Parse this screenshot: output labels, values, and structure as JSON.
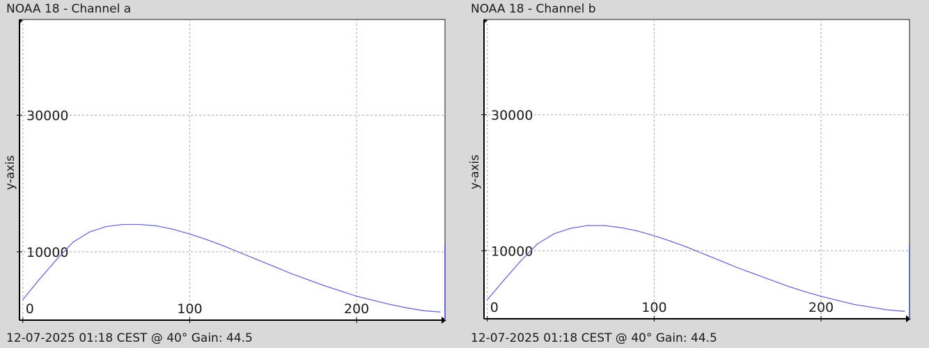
{
  "chart_data": [
    {
      "type": "line",
      "title": "NOAA 18 - Channel a",
      "footer": "12-07-2025 01:18 CEST @ 40° Gain: 44.5",
      "ylabel": "y-axis",
      "xlabel": "",
      "xlim": [
        -2,
        253
      ],
      "ylim": [
        0,
        44000
      ],
      "grid": true,
      "x_ticks": [
        0,
        100,
        200
      ],
      "x_tick_labels": [
        "0",
        "100",
        "200"
      ],
      "y_ticks": [
        10000,
        30000
      ],
      "y_tick_labels": [
        "10000",
        "30000"
      ],
      "line_color": "#6a6ac8",
      "series": [
        {
          "x": [
            0,
            10,
            20,
            30,
            40,
            50,
            60,
            70,
            80,
            90,
            100,
            110,
            120,
            130,
            140,
            150,
            160,
            170,
            180,
            190,
            200,
            210,
            220,
            230,
            240,
            250
          ],
          "values": [
            3000,
            6000,
            8800,
            11400,
            12900,
            13700,
            14000,
            14000,
            13800,
            13300,
            12600,
            11800,
            10900,
            9900,
            8900,
            7900,
            6900,
            6000,
            5100,
            4300,
            3500,
            2900,
            2300,
            1800,
            1400,
            1200
          ]
        }
      ],
      "end_spike": {
        "x": 253,
        "value": 11200
      }
    },
    {
      "type": "line",
      "title": "NOAA 18 - Channel b",
      "footer": "12-07-2025 01:18 CEST @ 40° Gain: 44.5",
      "ylabel": "y-axis",
      "xlabel": "",
      "xlim": [
        -2,
        253
      ],
      "ylim": [
        0,
        44000
      ],
      "grid": true,
      "x_ticks": [
        0,
        100,
        200
      ],
      "x_tick_labels": [
        "0",
        "100",
        "200"
      ],
      "y_ticks": [
        10000,
        30000
      ],
      "y_tick_labels": [
        "10000",
        "30000"
      ],
      "line_color": "#6a6ac8",
      "series": [
        {
          "x": [
            0,
            10,
            20,
            30,
            40,
            50,
            60,
            70,
            80,
            90,
            100,
            110,
            120,
            130,
            140,
            150,
            160,
            170,
            180,
            190,
            200,
            210,
            220,
            230,
            240,
            250
          ],
          "values": [
            2800,
            5700,
            8500,
            11000,
            12500,
            13300,
            13700,
            13700,
            13400,
            12900,
            12200,
            11400,
            10500,
            9500,
            8500,
            7500,
            6600,
            5700,
            4800,
            4000,
            3300,
            2700,
            2100,
            1700,
            1300,
            1100
          ]
        }
      ],
      "end_spike": {
        "x": 253,
        "value": 10800
      }
    }
  ]
}
